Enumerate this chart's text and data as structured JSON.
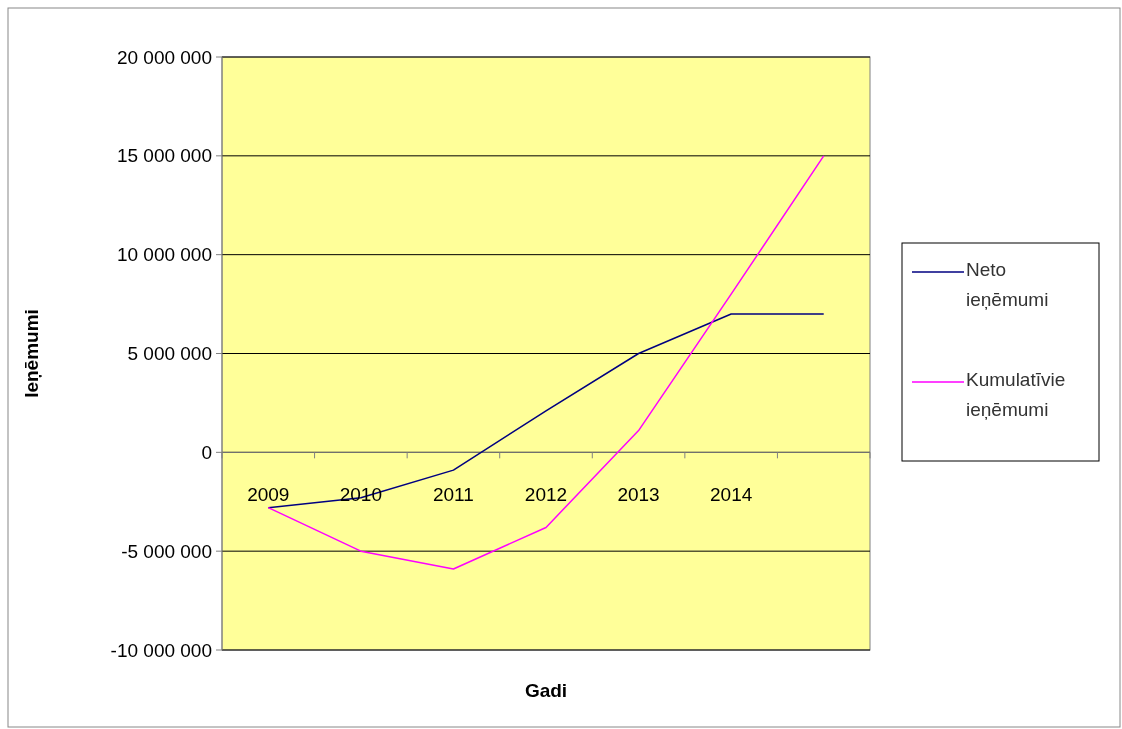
{
  "chart_data": {
    "type": "line",
    "xlabel": "Gadi",
    "ylabel": "Ieņēmumi",
    "categories": [
      "2009",
      "2010",
      "2011",
      "2012",
      "2013",
      "2014",
      null
    ],
    "series": [
      {
        "name": "Neto ieņēmumi",
        "color": "#000080",
        "values": [
          -2800000,
          -2300000,
          -900000,
          2100000,
          5000000,
          7000000,
          7000000
        ]
      },
      {
        "name": "Kumulatīvie ieņēmumi",
        "color": "#ff00ff",
        "values": [
          -2800000,
          -5000000,
          -5900000,
          -3800000,
          1100000,
          8000000,
          15000000
        ]
      }
    ],
    "ylim": [
      -10000000,
      20000000
    ],
    "yticks": [
      {
        "value": -10000000,
        "label": "-10 000 000"
      },
      {
        "value": -5000000,
        "label": "-5 000 000"
      },
      {
        "value": 0,
        "label": "0"
      },
      {
        "value": 5000000,
        "label": "5 000 000"
      },
      {
        "value": 10000000,
        "label": "10 000 000"
      },
      {
        "value": 15000000,
        "label": "15 000 000"
      },
      {
        "value": 20000000,
        "label": "20 000 000"
      }
    ],
    "grid": "y",
    "legend": "right",
    "marker": "none",
    "line_style": "solid"
  }
}
